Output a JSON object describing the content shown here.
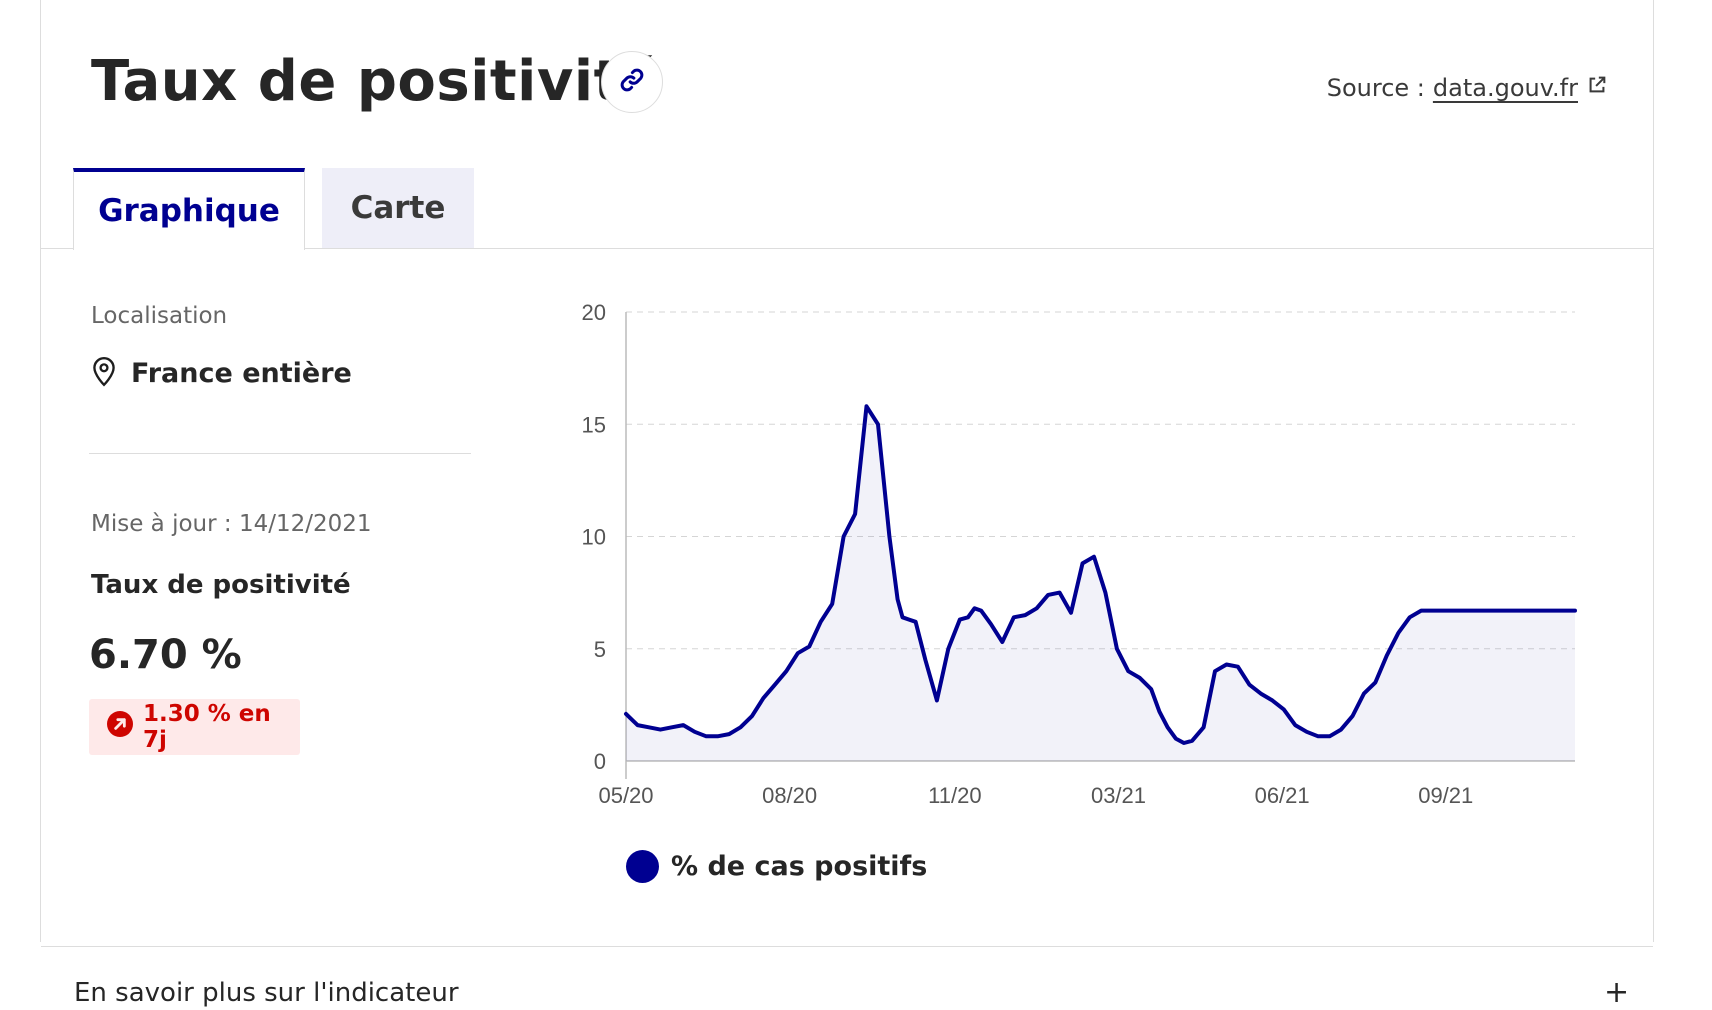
{
  "header": {
    "title": "Taux de positivité",
    "source_prefix": "Source :",
    "source_link": "data.gouv.fr"
  },
  "tabs": [
    {
      "label": "Graphique",
      "active": true
    },
    {
      "label": "Carte",
      "active": false
    }
  ],
  "sidebar": {
    "location_label": "Localisation",
    "location_value": "France entière",
    "update_text": "Mise à jour : 14/12/2021",
    "indicator_name": "Taux de positivité",
    "indicator_value": "6.70 %",
    "evolution_text": "1.30 % en 7j"
  },
  "footer": {
    "more_label": "En savoir plus sur l'indicateur",
    "expand_symbol": "+"
  },
  "colors": {
    "primary": "#000091",
    "danger": "#ce0500",
    "danger_bg": "#fee9e9"
  },
  "chart_data": {
    "type": "area",
    "ylim": [
      0,
      20
    ],
    "yticks": [
      0,
      5,
      10,
      15,
      20
    ],
    "xticks": [
      "05/20",
      "08/20",
      "11/20",
      "03/21",
      "06/21",
      "09/21"
    ],
    "grid": true,
    "legend_position": "bottom-left",
    "series": [
      {
        "name": "% de cas positifs",
        "color": "#000091",
        "x": [
          "2020-05-13",
          "2020-05-20",
          "2020-05-27",
          "2020-06-03",
          "2020-06-10",
          "2020-06-17",
          "2020-06-24",
          "2020-07-01",
          "2020-07-08",
          "2020-07-15",
          "2020-07-22",
          "2020-07-29",
          "2020-08-05",
          "2020-08-12",
          "2020-08-19",
          "2020-08-26",
          "2020-09-02",
          "2020-09-09",
          "2020-09-16",
          "2020-09-23",
          "2020-09-30",
          "2020-10-07",
          "2020-10-14",
          "2020-10-21",
          "2020-10-26",
          "2020-10-29",
          "2020-11-02",
          "2020-11-06",
          "2020-11-12",
          "2020-11-19",
          "2020-11-26",
          "2020-12-03",
          "2020-12-08",
          "2020-12-12",
          "2020-12-16",
          "2020-12-22",
          "2020-12-29",
          "2021-01-05",
          "2021-01-12",
          "2021-01-19",
          "2021-01-26",
          "2021-02-02",
          "2021-02-09",
          "2021-02-16",
          "2021-02-23",
          "2021-03-02",
          "2021-03-09",
          "2021-03-16",
          "2021-03-23",
          "2021-03-30",
          "2021-04-04",
          "2021-04-09",
          "2021-04-14",
          "2021-04-19",
          "2021-04-24",
          "2021-05-01",
          "2021-05-08",
          "2021-05-15",
          "2021-05-22",
          "2021-05-29",
          "2021-06-05",
          "2021-06-12",
          "2021-06-19",
          "2021-06-26",
          "2021-07-03",
          "2021-07-10",
          "2021-07-17",
          "2021-07-24",
          "2021-07-31",
          "2021-08-07",
          "2021-08-14",
          "2021-08-21",
          "2021-08-28",
          "2021-09-04",
          "2021-09-11",
          "2021-09-18",
          "2021-09-25",
          "2021-10-02",
          "2021-10-09",
          "2021-10-16",
          "2021-10-23",
          "2021-10-30",
          "2021-11-06",
          "2021-11-13",
          "2021-11-20",
          "2021-11-27",
          "2021-12-04",
          "2021-12-11",
          "2021-12-14"
        ],
        "values": [
          2.1,
          1.6,
          1.5,
          1.4,
          1.5,
          1.6,
          1.3,
          1.1,
          1.1,
          1.2,
          1.5,
          2.0,
          2.8,
          3.4,
          4.0,
          4.8,
          5.1,
          6.2,
          7.0,
          10.0,
          11.0,
          15.8,
          15.0,
          10.0,
          7.2,
          6.4,
          6.3,
          6.2,
          4.5,
          2.7,
          5.0,
          6.3,
          6.4,
          6.8,
          6.7,
          6.1,
          5.3,
          6.4,
          6.5,
          6.8,
          7.4,
          7.5,
          6.6,
          8.8,
          9.1,
          7.5,
          5.0,
          4.0,
          3.7,
          3.2,
          2.2,
          1.5,
          1.0,
          0.8,
          0.9,
          1.5,
          4.0,
          4.3,
          4.2,
          3.4,
          3.0,
          2.7,
          2.3,
          1.6,
          1.3,
          1.1,
          1.1,
          1.4,
          2.0,
          3.0,
          3.5,
          4.7,
          5.7,
          6.4,
          6.7,
          6.7,
          6.7,
          6.7,
          6.7,
          6.7,
          6.7,
          6.7,
          6.7,
          6.7,
          6.7,
          6.7,
          6.7,
          6.7,
          6.7
        ]
      }
    ]
  }
}
